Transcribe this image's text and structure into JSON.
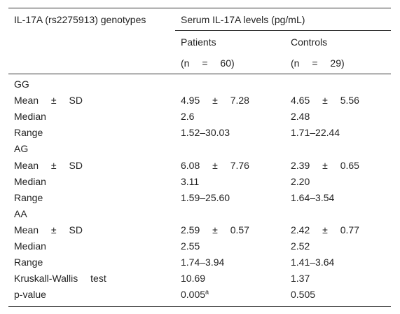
{
  "header": {
    "col1": "IL-17A (rs2275913) genotypes",
    "group": "Serum IL-17A levels (pg/mL)",
    "columns": [
      {
        "name": "Patients",
        "n": "(n = 60)"
      },
      {
        "name": "Controls",
        "n": "(n = 29)"
      }
    ]
  },
  "rows": [
    [
      "GG"
    ],
    [
      "Mean ± SD",
      "4.95 ± 7.28",
      "4.65 ± 5.56"
    ],
    [
      "Median",
      "2.6",
      "2.48"
    ],
    [
      "Range",
      "1.52–30.03",
      "1.71–22.44"
    ],
    [
      "AG"
    ],
    [
      "Mean ± SD",
      "6.08 ± 7.76",
      "2.39 ± 0.65"
    ],
    [
      "Median",
      "3.11",
      "2.20"
    ],
    [
      "Range",
      "1.59–25.60",
      "1.64–3.54"
    ],
    [
      "AA"
    ],
    [
      "Mean ± SD",
      "2.59 ± 0.57",
      "2.42 ± 0.77"
    ],
    [
      "Median",
      "2.55",
      "2.52"
    ],
    [
      "Range",
      "1.74–3.94",
      "1.41–3.64"
    ],
    [
      "Kruskall-Wallis test",
      "10.69",
      "1.37"
    ],
    [
      "p-value",
      {
        "text": "0.005",
        "sup": "a"
      },
      "0.505"
    ]
  ]
}
